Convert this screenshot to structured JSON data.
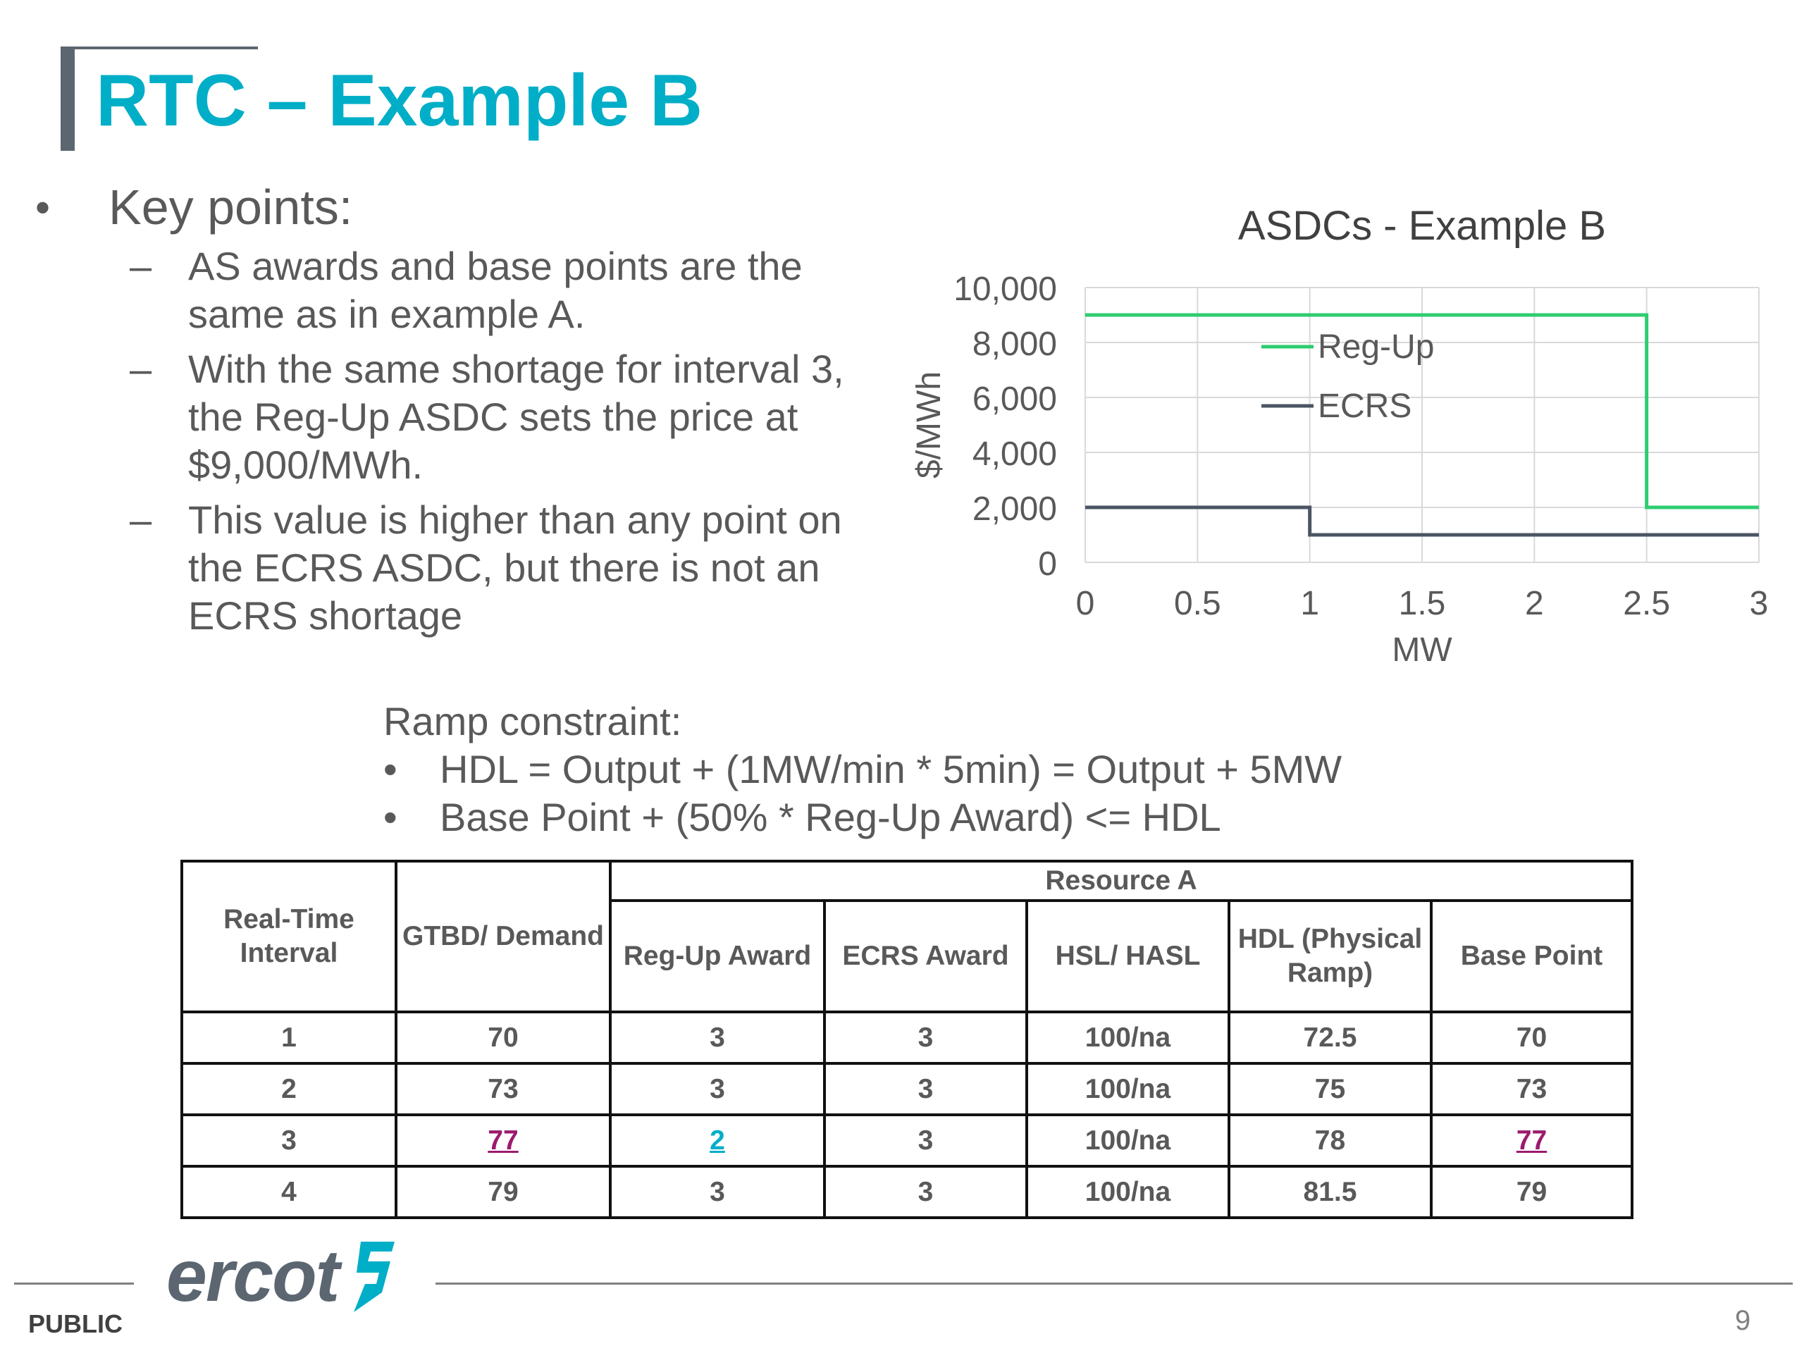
{
  "title": "RTC – Example B",
  "key_points": {
    "heading": "Key points:",
    "items": [
      {
        "lines": [
          "AS awards and base points are the",
          "same as in example A."
        ]
      },
      {
        "lines": [
          "With the same shortage for interval 3,",
          "the Reg-Up ASDC sets the price at",
          "$9,000/MWh."
        ]
      },
      {
        "lines": [
          "This value is higher than any point on",
          "the ECRS ASDC, but there is not an",
          "ECRS shortage"
        ]
      }
    ]
  },
  "chart_data": {
    "type": "line",
    "title": "ASDCs - Example B",
    "xlabel": "MW",
    "ylabel": "$/MWh",
    "xlim": [
      0,
      3
    ],
    "ylim": [
      0,
      10000
    ],
    "x_ticks": [
      "0",
      "0.5",
      "1",
      "1.5",
      "2",
      "2.5",
      "3"
    ],
    "y_ticks": [
      "0",
      "2,000",
      "4,000",
      "6,000",
      "8,000",
      "10,000"
    ],
    "grid": true,
    "legend": "inside-top-center",
    "series": [
      {
        "name": "Reg-Up",
        "color": "#2ecc71",
        "points": [
          [
            0,
            9000
          ],
          [
            2.5,
            9000
          ],
          [
            2.5,
            2000
          ],
          [
            3,
            2000
          ]
        ]
      },
      {
        "name": "ECRS",
        "color": "#4b5563",
        "points": [
          [
            0,
            2000
          ],
          [
            1,
            2000
          ],
          [
            1,
            1000
          ],
          [
            3,
            1000
          ]
        ]
      }
    ]
  },
  "ramp": {
    "heading": "Ramp constraint:",
    "items": [
      "HDL =  Output + (1MW/min * 5min) = Output + 5MW",
      "Base Point + (50% * Reg-Up Award) <= HDL"
    ]
  },
  "table": {
    "group_header": "Resource A",
    "headers": {
      "interval": "Real-Time Interval",
      "gtbd": "GTBD/ Demand",
      "regup": "Reg-Up Award",
      "ecrs": "ECRS Award",
      "hsl": "HSL/ HASL",
      "hdl": "HDL (Physical Ramp)",
      "base": "Base Point"
    },
    "rows": [
      {
        "interval": "1",
        "gtbd": "70",
        "regup": "3",
        "ecrs": "3",
        "hsl": "100/na",
        "hdl": "72.5",
        "base": "70"
      },
      {
        "interval": "2",
        "gtbd": "73",
        "regup": "3",
        "ecrs": "3",
        "hsl": "100/na",
        "hdl": "75",
        "base": "73"
      },
      {
        "interval": "3",
        "gtbd": "77",
        "regup": "2",
        "ecrs": "3",
        "hsl": "100/na",
        "hdl": "78",
        "base": "77"
      },
      {
        "interval": "4",
        "gtbd": "79",
        "regup": "3",
        "ecrs": "3",
        "hsl": "100/na",
        "hdl": "81.5",
        "base": "79"
      }
    ],
    "highlight_colors": {
      "purple": "#9b1b6e",
      "teal": "#00aec7"
    }
  },
  "footer": {
    "logo_text": "ercot",
    "label": "PUBLIC",
    "page_number": "9"
  }
}
